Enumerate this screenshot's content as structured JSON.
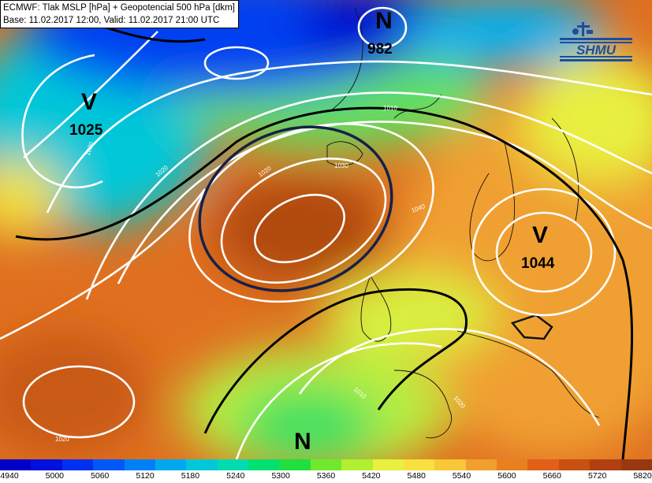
{
  "header": {
    "line1": "ECMWF: Tlak MSLP [hPa] + Geopotencial 500 hPa [dkm]",
    "line2": "Base: 11.02.2017 12:00, Valid: 11.02.2017 21:00 UTC"
  },
  "logo": {
    "text": "SHMU",
    "color": "#1a4fa0"
  },
  "systems": [
    {
      "id": "low-north",
      "letter": "N",
      "value": "982"
    },
    {
      "id": "high-greenland",
      "letter": "V",
      "value": "1025"
    },
    {
      "id": "high-east-europe",
      "letter": "V",
      "value": "1044"
    },
    {
      "id": "low-south",
      "letter": "N",
      "value": ""
    }
  ],
  "isobar_labels": [
    "1010",
    "1020",
    "1030",
    "1020",
    "1040",
    "1020",
    "1010",
    "1020",
    "1020"
  ],
  "legend": {
    "ticks": [
      "4940",
      "5000",
      "5060",
      "5120",
      "5180",
      "5240",
      "5300",
      "5360",
      "5420",
      "5480",
      "5540",
      "5600",
      "5660",
      "5720",
      "5820"
    ],
    "colors": [
      "#0000c8",
      "#0010e0",
      "#0030f0",
      "#0058f8",
      "#0080f8",
      "#00a8f0",
      "#00c8d8",
      "#00dcb0",
      "#00e070",
      "#20e040",
      "#70e830",
      "#b0f030",
      "#e8f040",
      "#f8e040",
      "#f8c838",
      "#f0a030",
      "#e88020",
      "#e06018",
      "#c85010",
      "#b04010",
      "#983810"
    ]
  }
}
